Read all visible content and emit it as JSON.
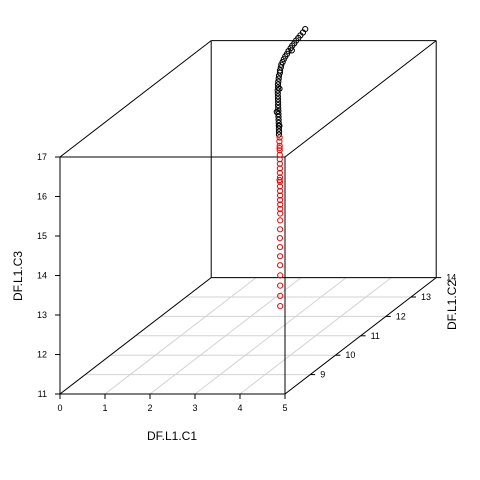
{
  "chart_data": {
    "type": "scatter",
    "projection": "3d",
    "title": "",
    "xlabel": "DF.L1.C1",
    "ylabel": "DF.L1.C2",
    "zlabel": "DF.L1.C3",
    "xlim": [
      0,
      5
    ],
    "ylim": [
      8,
      14
    ],
    "zlim": [
      11,
      17
    ],
    "x_ticks": [
      "0",
      "1",
      "2",
      "3",
      "4",
      "5"
    ],
    "y_ticks": [
      "9",
      "10",
      "11",
      "12",
      "13",
      "14"
    ],
    "z_ticks": [
      "11",
      "12",
      "13",
      "14",
      "15",
      "16",
      "17"
    ],
    "grid": "base plane",
    "colors": {
      "group_1": "#000000",
      "group_2": "#ff0000",
      "grid": "#d3d3d3",
      "box": "#000000"
    },
    "series": [
      {
        "color": "#000000",
        "points": [
          {
            "x": 2.1,
            "y": 13.98,
            "z": 17.3
          },
          {
            "x": 2.08,
            "y": 13.93,
            "z": 17.24
          },
          {
            "x": 2.05,
            "y": 13.88,
            "z": 17.19
          },
          {
            "x": 2.02,
            "y": 13.85,
            "z": 17.14
          },
          {
            "x": 2.0,
            "y": 13.8,
            "z": 17.1
          },
          {
            "x": 1.98,
            "y": 13.76,
            "z": 17.05
          },
          {
            "x": 1.96,
            "y": 13.72,
            "z": 17.01
          },
          {
            "x": 1.95,
            "y": 13.67,
            "z": 16.97
          },
          {
            "x": 1.93,
            "y": 13.62,
            "z": 16.92
          },
          {
            "x": 1.92,
            "y": 13.58,
            "z": 16.87
          },
          {
            "x": 1.91,
            "y": 13.53,
            "z": 16.83
          },
          {
            "x": 1.9,
            "y": 13.49,
            "z": 16.78
          },
          {
            "x": 1.9,
            "y": 13.44,
            "z": 16.73
          },
          {
            "x": 1.9,
            "y": 13.39,
            "z": 16.69
          },
          {
            "x": 1.91,
            "y": 13.35,
            "z": 16.64
          },
          {
            "x": 1.92,
            "y": 13.3,
            "z": 16.59
          },
          {
            "x": 1.94,
            "y": 13.26,
            "z": 16.55
          },
          {
            "x": 1.95,
            "y": 13.21,
            "z": 16.5
          },
          {
            "x": 1.97,
            "y": 13.16,
            "z": 16.45
          },
          {
            "x": 1.99,
            "y": 13.11,
            "z": 16.4
          },
          {
            "x": 2.01,
            "y": 13.06,
            "z": 16.35
          },
          {
            "x": 2.04,
            "y": 13.01,
            "z": 16.3
          },
          {
            "x": 2.06,
            "y": 12.96,
            "z": 16.25
          },
          {
            "x": 2.09,
            "y": 12.91,
            "z": 16.2
          },
          {
            "x": 2.12,
            "y": 12.86,
            "z": 16.15
          },
          {
            "x": 2.15,
            "y": 12.81,
            "z": 16.1
          },
          {
            "x": 2.18,
            "y": 12.76,
            "z": 16.05
          },
          {
            "x": 2.21,
            "y": 12.71,
            "z": 16.0
          },
          {
            "x": 2.24,
            "y": 12.66,
            "z": 15.95
          },
          {
            "x": 2.27,
            "y": 12.61,
            "z": 15.9
          },
          {
            "x": 2.3,
            "y": 12.56,
            "z": 15.85
          },
          {
            "x": 2.33,
            "y": 12.51,
            "z": 15.8
          },
          {
            "x": 2.36,
            "y": 12.46,
            "z": 15.75
          },
          {
            "x": 2.39,
            "y": 12.41,
            "z": 15.7
          },
          {
            "x": 2.42,
            "y": 12.36,
            "z": 15.65
          },
          {
            "x": 2.45,
            "y": 12.31,
            "z": 15.6
          },
          {
            "x": 2.48,
            "y": 12.26,
            "z": 15.55
          },
          {
            "x": 2.51,
            "y": 12.21,
            "z": 15.5
          },
          {
            "x": 1.96,
            "y": 13.7,
            "z": 16.9
          },
          {
            "x": 2.05,
            "y": 13.05,
            "z": 16.25
          },
          {
            "x": 2.22,
            "y": 12.64,
            "z": 15.86
          },
          {
            "x": 2.4,
            "y": 12.42,
            "z": 15.62
          }
        ]
      },
      {
        "color": "#ff0000",
        "points": [
          {
            "x": 2.55,
            "y": 12.16,
            "z": 15.45
          },
          {
            "x": 2.58,
            "y": 12.1,
            "z": 15.38
          },
          {
            "x": 2.62,
            "y": 12.04,
            "z": 15.3
          },
          {
            "x": 2.66,
            "y": 11.97,
            "z": 15.22
          },
          {
            "x": 2.7,
            "y": 11.9,
            "z": 15.14
          },
          {
            "x": 2.74,
            "y": 11.83,
            "z": 15.06
          },
          {
            "x": 2.78,
            "y": 11.76,
            "z": 14.98
          },
          {
            "x": 2.82,
            "y": 11.69,
            "z": 14.9
          },
          {
            "x": 2.86,
            "y": 11.62,
            "z": 14.82
          },
          {
            "x": 2.9,
            "y": 11.55,
            "z": 14.74
          },
          {
            "x": 2.94,
            "y": 11.48,
            "z": 14.66
          },
          {
            "x": 2.98,
            "y": 11.41,
            "z": 14.58
          },
          {
            "x": 3.02,
            "y": 11.34,
            "z": 14.5
          },
          {
            "x": 3.06,
            "y": 11.27,
            "z": 14.42
          },
          {
            "x": 3.1,
            "y": 11.2,
            "z": 14.34
          },
          {
            "x": 3.14,
            "y": 11.13,
            "z": 14.26
          },
          {
            "x": 3.18,
            "y": 11.06,
            "z": 14.18
          },
          {
            "x": 3.22,
            "y": 10.99,
            "z": 14.1
          },
          {
            "x": 3.28,
            "y": 10.88,
            "z": 13.98
          },
          {
            "x": 3.35,
            "y": 10.75,
            "z": 13.82
          },
          {
            "x": 3.42,
            "y": 10.62,
            "z": 13.66
          },
          {
            "x": 3.5,
            "y": 10.48,
            "z": 13.5
          },
          {
            "x": 3.58,
            "y": 10.34,
            "z": 13.34
          },
          {
            "x": 3.66,
            "y": 10.2,
            "z": 13.18
          },
          {
            "x": 3.75,
            "y": 10.04,
            "z": 13.0
          },
          {
            "x": 3.84,
            "y": 9.88,
            "z": 12.82
          },
          {
            "x": 3.93,
            "y": 9.72,
            "z": 12.64
          },
          {
            "x": 4.02,
            "y": 9.56,
            "z": 12.46
          },
          {
            "x": 2.64,
            "y": 12.0,
            "z": 15.26
          },
          {
            "x": 2.92,
            "y": 11.5,
            "z": 14.7
          }
        ]
      }
    ]
  }
}
